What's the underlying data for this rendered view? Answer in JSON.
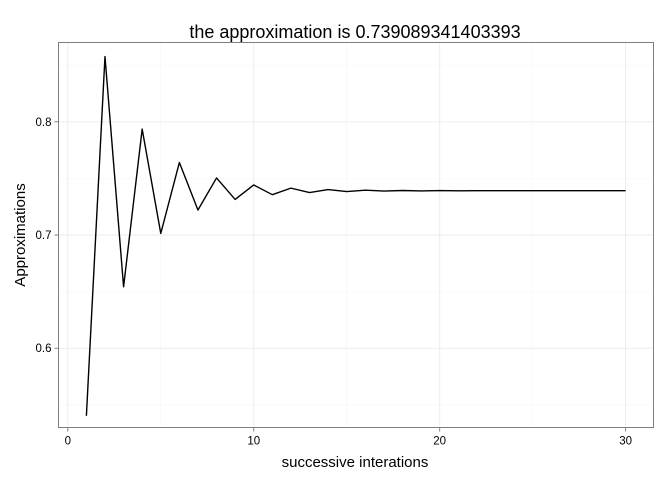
{
  "chart_data": {
    "type": "line",
    "title": "the approximation is 0.739089341403393",
    "xlabel": "successive interations",
    "ylabel": "Approximations",
    "xlim": [
      -0.5,
      31.5
    ],
    "ylim": [
      0.53,
      0.87
    ],
    "x_ticks": [
      0,
      10,
      20,
      30
    ],
    "x_tick_labels": [
      "0",
      "10",
      "20",
      "30"
    ],
    "y_ticks": [
      0.6,
      0.7,
      0.8
    ],
    "y_tick_labels": [
      "0.6",
      "0.7",
      "0.8"
    ],
    "x_minor_ticks": [
      5,
      15,
      25
    ],
    "y_minor_ticks": [
      0.55,
      0.65,
      0.75,
      0.85
    ],
    "grid": true,
    "series": [
      {
        "x": [
          1,
          2,
          3,
          4,
          5,
          6,
          7,
          8,
          9,
          10,
          11,
          12,
          13,
          14,
          15,
          16,
          17,
          18,
          19,
          20,
          21,
          22,
          23,
          24,
          25,
          26,
          27,
          28,
          29,
          30
        ],
        "values": [
          0.5403,
          0.8576,
          0.6543,
          0.7935,
          0.7014,
          0.764,
          0.7221,
          0.7504,
          0.7314,
          0.7442,
          0.7356,
          0.7414,
          0.7375,
          0.7401,
          0.7384,
          0.7396,
          0.7388,
          0.7393,
          0.7389,
          0.7392,
          0.739,
          0.7391,
          0.7391,
          0.7391,
          0.7391,
          0.7391,
          0.7391,
          0.7391,
          0.7391,
          0.7391
        ],
        "color": "#000000"
      }
    ]
  }
}
